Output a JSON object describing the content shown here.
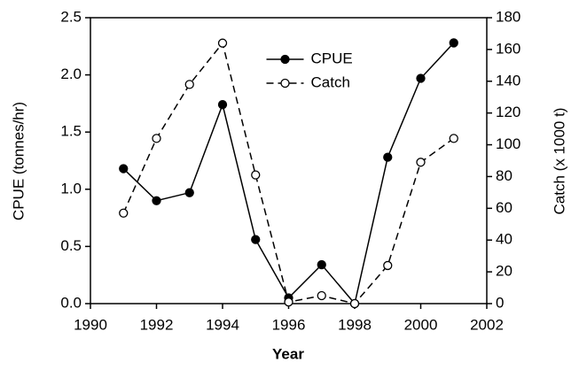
{
  "chart_data": {
    "type": "line",
    "xlabel": "Year",
    "ylabel": "CPUE (tonnes/hr)",
    "y2label": "Catch (x 1000 t)",
    "x": [
      1991,
      1992,
      1993,
      1994,
      1995,
      1996,
      1997,
      1998,
      1999,
      2000,
      2001
    ],
    "series": [
      {
        "name": "CPUE",
        "color": "#000000",
        "linestyle": "solid",
        "marker_fill": "#000000",
        "axis": "y",
        "values": [
          1.18,
          0.9,
          0.97,
          1.74,
          0.56,
          0.05,
          0.34,
          0.0,
          1.28,
          1.97,
          2.28
        ]
      },
      {
        "name": "Catch",
        "color": "#000000",
        "linestyle": "dashed",
        "marker_fill": "#ffffff",
        "axis": "y2",
        "values": [
          57,
          104,
          138,
          164,
          81,
          1,
          5,
          0,
          24,
          89,
          104
        ]
      }
    ],
    "xlim": [
      1990,
      2002
    ],
    "xticks": [
      1990,
      1992,
      1994,
      1996,
      1998,
      2000,
      2002
    ],
    "ylim": [
      0,
      2.5
    ],
    "yticks": [
      {
        "value": 0,
        "label": "0.0"
      },
      {
        "value": 0.5,
        "label": "0.5"
      },
      {
        "value": 1,
        "label": "1.0"
      },
      {
        "value": 1.5,
        "label": "1.5"
      },
      {
        "value": 2,
        "label": "2.0"
      },
      {
        "value": 2.5,
        "label": "2.5"
      }
    ],
    "y2lim": [
      0,
      180
    ],
    "y2ticks": [
      0,
      20,
      40,
      60,
      80,
      100,
      120,
      140,
      160,
      180
    ],
    "legend": "upper center",
    "grid": false
  }
}
